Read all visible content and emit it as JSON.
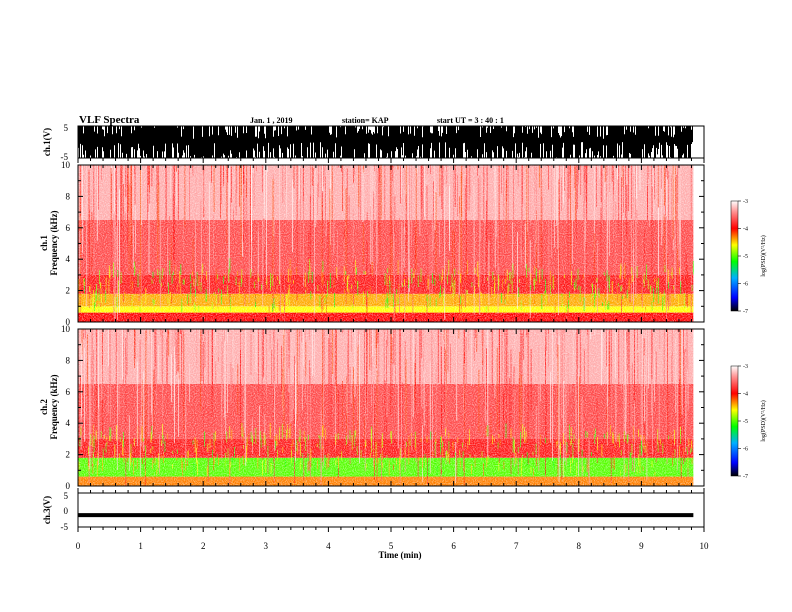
{
  "header": {
    "title": "VLF Spectra",
    "date": "Jan. 1 , 2019",
    "station": "station= KAP",
    "start": "start UT = 3 : 40 : 1"
  },
  "chart_data": [
    {
      "type": "line",
      "name": "ch1-waveform",
      "ylabel": "ch.1(V)",
      "ylim": [
        -5,
        5
      ],
      "yticks": [
        "5",
        "-5"
      ],
      "x_range_min": [
        0,
        9.83
      ],
      "description_values": "dense oscillating waveform spanning roughly -5 to 5 V"
    },
    {
      "type": "heatmap",
      "name": "ch1-spectrogram",
      "ylabel_line1": "ch.1",
      "ylabel_line2": "Frequency (kHz)",
      "ylim": [
        0,
        10
      ],
      "yticks": [
        "0",
        "2",
        "4",
        "6",
        "8",
        "10"
      ],
      "colorbar": {
        "label": "log(PSD)(V²/Hz)",
        "range": [
          -7,
          -3
        ],
        "ticks": [
          "-3",
          "-4",
          "-5",
          "-6",
          "-7"
        ]
      },
      "bands_khz": [
        {
          "from": 0,
          "to": 0.6,
          "level": -4.0
        },
        {
          "from": 0.6,
          "to": 1.0,
          "level": -4.6
        },
        {
          "from": 1.0,
          "to": 1.8,
          "level": -4.4
        },
        {
          "from": 1.8,
          "to": 3.0,
          "level": -3.9
        },
        {
          "from": 3.0,
          "to": 6.5,
          "level": -3.7
        },
        {
          "from": 6.5,
          "to": 10,
          "level": -3.3
        }
      ]
    },
    {
      "type": "heatmap",
      "name": "ch2-spectrogram",
      "ylabel_line1": "ch.2",
      "ylabel_line2": "Frequency (kHz)",
      "ylim": [
        0,
        10
      ],
      "yticks": [
        "0",
        "2",
        "4",
        "6",
        "8",
        "10"
      ],
      "colorbar": {
        "label": "log(PSD)(V²/Hz)",
        "range": [
          -7,
          -3
        ],
        "ticks": [
          "-3",
          "-4",
          "-5",
          "-6",
          "-7"
        ]
      },
      "bands_khz": [
        {
          "from": 0,
          "to": 0.6,
          "level": -4.3
        },
        {
          "from": 0.6,
          "to": 1.8,
          "level": -5.0
        },
        {
          "from": 1.8,
          "to": 3.0,
          "level": -3.9
        },
        {
          "from": 3.0,
          "to": 6.5,
          "level": -3.7
        },
        {
          "from": 6.5,
          "to": 10,
          "level": -3.3
        }
      ]
    },
    {
      "type": "line",
      "name": "ch3-waveform",
      "ylabel": "ch.3(V)",
      "ylim": [
        -5,
        5
      ],
      "yticks": [
        "5",
        "0",
        "-5"
      ],
      "x": [
        0,
        9.83
      ],
      "y": [
        -1.5,
        -1.5
      ]
    }
  ],
  "x_axis": {
    "label": "Time (min)",
    "range": [
      0,
      10
    ],
    "ticks": [
      "0",
      "1",
      "2",
      "3",
      "4",
      "5",
      "6",
      "7",
      "8",
      "9",
      "10"
    ]
  },
  "data_end_min": 9.83
}
